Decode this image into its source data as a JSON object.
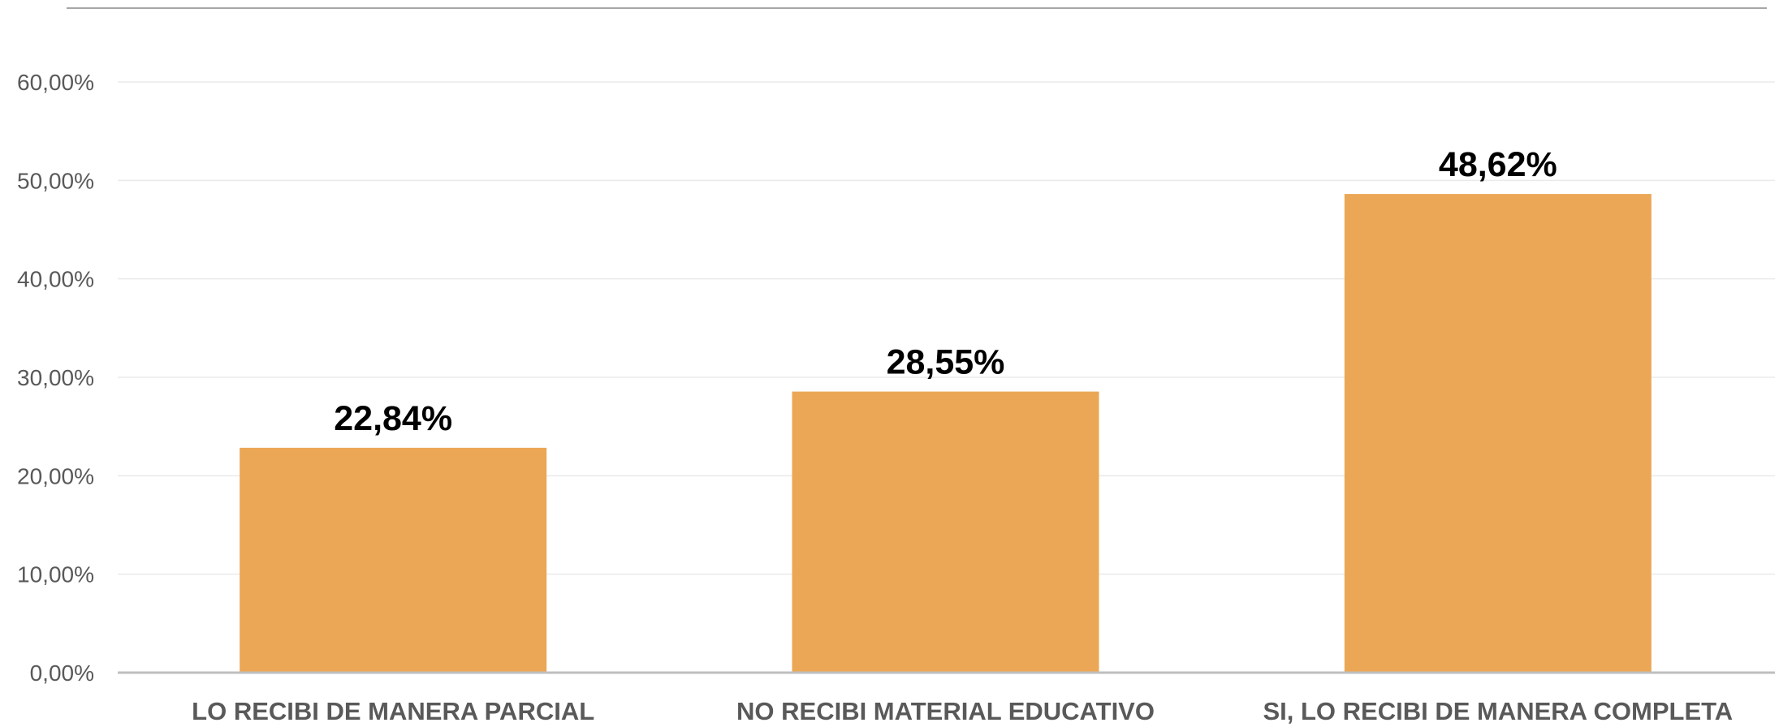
{
  "chart_data": {
    "type": "bar",
    "title": "",
    "xlabel": "",
    "ylabel": "",
    "categories": [
      "LO RECIBI DE MANERA PARCIAL",
      "NO RECIBI MATERIAL EDUCATIVO",
      "SI, LO RECIBI DE MANERA COMPLETA"
    ],
    "values": [
      22.84,
      28.55,
      48.62
    ],
    "data_labels": [
      "22,84%",
      "28,55%",
      "48,62%"
    ],
    "ylim": [
      0,
      60
    ],
    "y_ticks": [
      0,
      10,
      20,
      30,
      40,
      50,
      60
    ],
    "y_tick_labels": [
      "0,00%",
      "10,00%",
      "20,00%",
      "30,00%",
      "40,00%",
      "50,00%",
      "60,00%"
    ],
    "grid": true,
    "legend": "none",
    "bar_color": "#EBA755",
    "gridline_color": "#EAEAEA",
    "axis_color": "#BFBFBF",
    "top_border_color": "#A6A6A6"
  }
}
